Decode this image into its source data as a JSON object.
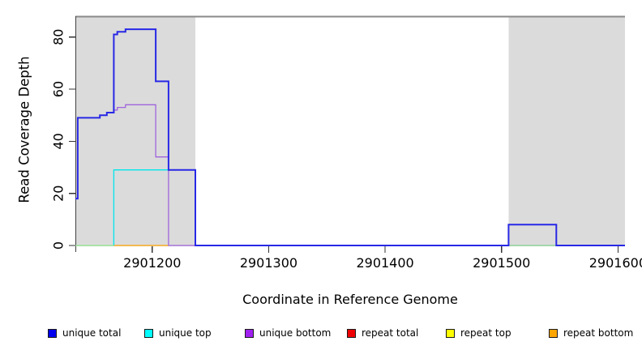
{
  "chart_data": {
    "type": "line",
    "subtype": "step",
    "title": "",
    "xlabel": "Coordinate in Reference Genome",
    "ylabel": "Read Coverage Depth",
    "xlim": [
      2901134,
      2901606
    ],
    "ylim": [
      0,
      88
    ],
    "x_ticks": [
      2901200,
      2901300,
      2901400,
      2901500,
      2901600
    ],
    "y_ticks": [
      0,
      20,
      40,
      60,
      80
    ],
    "grid": false,
    "background_color": "#ffffff",
    "shade_color": "#dbdbdb",
    "frame_top_color": "#8a8a8a",
    "axis_color": "#404040",
    "shaded_regions": [
      {
        "x0": 2901134,
        "x1": 2901237
      },
      {
        "x0": 2901506,
        "x1": 2901606
      }
    ],
    "series": [
      {
        "name": "repeat bottom",
        "color": "#ffa500",
        "width": 1.3,
        "points": [
          [
            2901167,
            0
          ],
          [
            2901214,
            0
          ]
        ]
      },
      {
        "name": "unique top",
        "color": "#00e6eb",
        "width": 1.3,
        "points": [
          [
            2901167,
            0
          ],
          [
            2901167,
            29
          ],
          [
            2901237,
            29
          ],
          [
            2901237,
            0
          ]
        ]
      },
      {
        "name": "unique bottom",
        "color": "#a064dc",
        "width": 1.3,
        "points": [
          [
            2901134,
            18
          ],
          [
            2901136,
            18
          ],
          [
            2901136,
            49
          ],
          [
            2901155,
            49
          ],
          [
            2901155,
            50
          ],
          [
            2901161,
            50
          ],
          [
            2901161,
            51
          ],
          [
            2901167,
            51
          ],
          [
            2901167,
            52
          ],
          [
            2901170,
            52
          ],
          [
            2901170,
            53
          ],
          [
            2901177,
            53
          ],
          [
            2901177,
            54
          ],
          [
            2901203,
            54
          ],
          [
            2901203,
            34
          ],
          [
            2901214,
            34
          ],
          [
            2901214,
            0
          ],
          [
            2901606,
            0
          ]
        ]
      },
      {
        "name": "zero line left (green)",
        "color": "#8ce68c",
        "width": 1.3,
        "points": [
          [
            2901134,
            0
          ],
          [
            2901167,
            0
          ]
        ]
      },
      {
        "name": "zero line right (green)",
        "color": "#8ce68c",
        "width": 1.3,
        "points": [
          [
            2901506,
            0
          ],
          [
            2901547,
            0
          ]
        ]
      },
      {
        "name": "unique total",
        "color": "#2828e6",
        "width": 2,
        "points": [
          [
            2901134,
            18
          ],
          [
            2901136,
            18
          ],
          [
            2901136,
            49
          ],
          [
            2901155,
            49
          ],
          [
            2901155,
            50
          ],
          [
            2901161,
            50
          ],
          [
            2901161,
            51
          ],
          [
            2901167,
            51
          ],
          [
            2901167,
            81
          ],
          [
            2901170,
            81
          ],
          [
            2901170,
            82
          ],
          [
            2901177,
            82
          ],
          [
            2901177,
            83
          ],
          [
            2901203,
            83
          ],
          [
            2901203,
            63
          ],
          [
            2901214,
            63
          ],
          [
            2901214,
            29
          ],
          [
            2901237,
            29
          ],
          [
            2901237,
            0
          ],
          [
            2901506,
            0
          ],
          [
            2901506,
            8
          ],
          [
            2901547,
            8
          ],
          [
            2901547,
            0
          ],
          [
            2901606,
            0
          ]
        ]
      }
    ],
    "legend": {
      "position": "bottom",
      "entries": [
        {
          "label": "unique total",
          "color": "#0000ee"
        },
        {
          "label": "unique top",
          "color": "#00ffff"
        },
        {
          "label": "unique bottom",
          "color": "#a020f0"
        },
        {
          "label": "repeat total",
          "color": "#ee0000"
        },
        {
          "label": "repeat top",
          "color": "#ffff00"
        },
        {
          "label": "repeat bottom",
          "color": "#ffa500"
        }
      ]
    }
  }
}
